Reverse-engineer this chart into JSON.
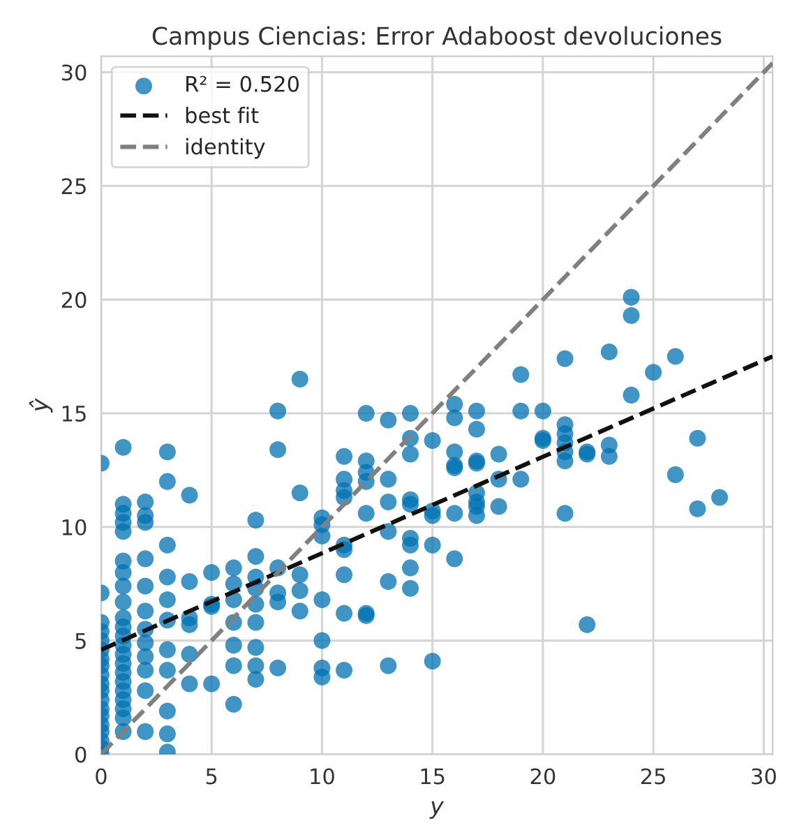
{
  "chart_data": {
    "type": "scatter",
    "title": "Campus Ciencias: Error Adaboost devoluciones",
    "xlabel": "y",
    "ylabel": "ŷ",
    "xlim": [
      0,
      30.4
    ],
    "ylim": [
      0,
      30.7
    ],
    "xticks": [
      0,
      5,
      10,
      15,
      20,
      25,
      30
    ],
    "yticks": [
      0,
      5,
      10,
      15,
      20,
      25,
      30
    ],
    "grid": true,
    "legend": "top left",
    "marker": "circle",
    "series": [
      {
        "name": "R² = 0.520",
        "color": "#0072b2",
        "x": [
          0,
          0,
          0,
          0,
          0,
          0,
          0,
          0,
          0,
          0,
          0,
          0,
          0,
          0,
          0,
          0,
          0,
          0,
          0,
          1,
          1,
          1,
          1,
          1,
          1,
          1,
          1,
          1,
          1,
          1,
          1,
          1,
          1,
          1,
          1,
          1,
          1,
          1,
          1,
          1,
          1,
          2,
          2,
          2,
          2,
          2,
          2,
          2,
          2,
          2,
          2,
          2,
          2,
          3,
          3,
          3,
          3,
          3,
          3,
          3,
          3,
          3,
          3,
          3,
          4,
          4,
          4,
          4,
          4,
          4,
          5,
          5,
          5,
          5,
          6,
          6,
          6,
          6,
          6,
          6,
          6,
          7,
          7,
          7,
          7,
          7,
          7,
          7,
          7,
          7,
          8,
          8,
          8,
          8,
          8,
          8,
          9,
          9,
          9,
          9,
          9,
          10,
          10,
          10,
          10,
          10,
          10,
          10,
          11,
          11,
          11,
          11,
          11,
          11,
          11,
          11,
          11,
          12,
          12,
          12,
          12,
          12,
          12,
          12,
          13,
          13,
          13,
          13,
          13,
          13,
          14,
          14,
          14,
          14,
          14,
          14,
          14,
          14,
          14,
          15,
          15,
          15,
          15,
          15,
          16,
          16,
          16,
          16,
          16,
          16,
          16,
          17,
          17,
          17,
          17,
          17,
          17,
          17,
          17,
          18,
          18,
          18,
          19,
          19,
          19,
          20,
          20,
          20,
          21,
          21,
          21,
          21,
          21,
          21,
          21,
          22,
          22,
          22,
          23,
          23,
          23,
          24,
          24,
          24,
          25,
          26,
          26,
          27,
          27,
          28
        ],
        "values": [
          0,
          0.3,
          0.6,
          1,
          1.3,
          1.7,
          2,
          2.4,
          2.8,
          3.1,
          3.5,
          3.9,
          4.2,
          4.6,
          5,
          5.4,
          5.8,
          7.1,
          12.8,
          13.5,
          11,
          10.6,
          10.2,
          9.8,
          8.5,
          8,
          7.4,
          6.7,
          6,
          5.6,
          5.2,
          4.8,
          4.4,
          4,
          3.6,
          3.2,
          2.8,
          2.4,
          2,
          1.6,
          1,
          11.1,
          10.5,
          10.2,
          8.6,
          7.4,
          6.3,
          5.5,
          4.9,
          4.3,
          3.7,
          2.8,
          1,
          13.3,
          12,
          9.2,
          7.8,
          6.8,
          5.9,
          4.6,
          3.7,
          1.9,
          0.9,
          0.1,
          11.4,
          7.6,
          6,
          5.7,
          4.4,
          3.1,
          8,
          6.6,
          6.5,
          3.1,
          8.2,
          7.5,
          6.8,
          5.8,
          4.8,
          3.9,
          2.2,
          10.3,
          8.7,
          7.8,
          7.3,
          6.6,
          5.8,
          4.7,
          3.9,
          3.3,
          15.1,
          13.4,
          8.2,
          7.1,
          6.7,
          3.8,
          16.5,
          11.5,
          7.9,
          7.2,
          6.3,
          10.4,
          10.1,
          9.6,
          6.8,
          5,
          3.8,
          3.4,
          13.1,
          12.1,
          11.6,
          11.3,
          9.2,
          9,
          7.9,
          6.2,
          3.7,
          15,
          12.9,
          12.4,
          12,
          10.6,
          6.2,
          6.1,
          14.7,
          12.1,
          11.1,
          9.8,
          7.6,
          3.9,
          15,
          13.9,
          13.2,
          11.2,
          11,
          9.5,
          9.2,
          8.2,
          7.3,
          13.8,
          10.7,
          10.5,
          9.2,
          4.1,
          15.4,
          14.8,
          13.3,
          12.7,
          12.6,
          10.6,
          8.6,
          15.1,
          14.3,
          12.9,
          12.8,
          11.5,
          11.1,
          10.9,
          10.5,
          13.2,
          12.1,
          10.9,
          16.7,
          15.1,
          12.1,
          15.1,
          13.9,
          13.8,
          17.4,
          14.5,
          14.1,
          13.7,
          13.3,
          12.9,
          10.6,
          13.3,
          13.2,
          5.7,
          17.7,
          13.6,
          13.1,
          20.1,
          19.3,
          15.8,
          16.8,
          17.5,
          12.3,
          13.9,
          10.8,
          11.3
        ]
      },
      {
        "name": "best fit",
        "type": "line",
        "color": "#111111",
        "line_style": "dashed",
        "marker": "none",
        "x": [
          0,
          30.4
        ],
        "values": [
          4.6,
          17.5
        ]
      },
      {
        "name": "identity",
        "type": "line",
        "color": "#808080",
        "line_style": "dashed",
        "marker": "none",
        "x": [
          0,
          30.4
        ],
        "values": [
          0,
          30.4
        ]
      }
    ]
  }
}
